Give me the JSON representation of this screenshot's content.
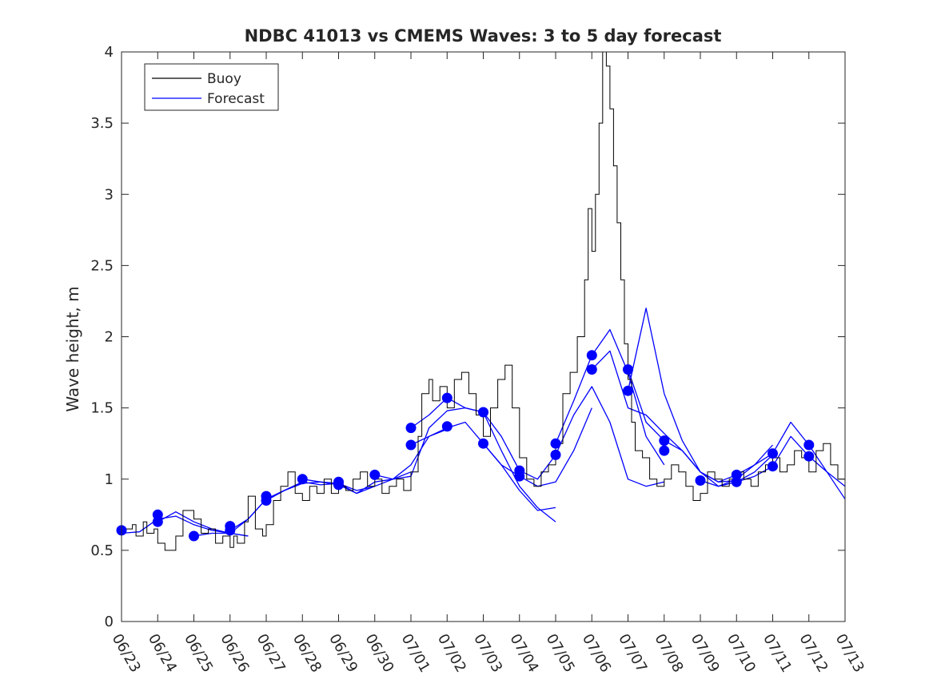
{
  "chart_data": {
    "type": "line",
    "title": "NDBC 41013 vs CMEMS Waves: 3 to 5 day forecast",
    "xlabel": "",
    "ylabel": "Wave height, m",
    "xlim": [
      "06/23",
      "07/13"
    ],
    "ylim": [
      0,
      4
    ],
    "grid": false,
    "legend_position": "top-left",
    "x_ticks": [
      "06/23",
      "06/24",
      "06/25",
      "06/26",
      "06/27",
      "06/28",
      "06/29",
      "06/30",
      "07/01",
      "07/02",
      "07/03",
      "07/04",
      "07/05",
      "07/06",
      "07/07",
      "07/08",
      "07/09",
      "07/10",
      "07/11",
      "07/12",
      "07/13"
    ],
    "y_ticks": [
      0,
      0.5,
      1,
      1.5,
      2,
      2.5,
      3,
      3.5,
      4
    ],
    "y_tick_labels": [
      "0",
      "0.5",
      "1",
      "1.5",
      "2",
      "2.5",
      "3",
      "3.5",
      "4"
    ],
    "colors": {
      "buoy": "#000000",
      "forecast": "#0000ff"
    },
    "legend": [
      {
        "label": "Buoy",
        "color": "#000000"
      },
      {
        "label": "Forecast",
        "color": "#0000ff"
      }
    ],
    "x_unit": "day of plotted period (0 = 06/23)",
    "buoy": {
      "name": "Buoy",
      "x": [
        0,
        0.3,
        0.4,
        0.6,
        0.7,
        0.9,
        1.0,
        1.2,
        1.5,
        1.7,
        2.0,
        2.2,
        2.4,
        2.6,
        2.8,
        3.0,
        3.1,
        3.2,
        3.4,
        3.5,
        3.7,
        3.9,
        4.0,
        4.2,
        4.4,
        4.6,
        4.8,
        5.0,
        5.2,
        5.4,
        5.6,
        5.8,
        6.0,
        6.2,
        6.4,
        6.6,
        6.8,
        7.0,
        7.2,
        7.4,
        7.6,
        7.8,
        8.0,
        8.2,
        8.3,
        8.5,
        8.6,
        8.8,
        9.0,
        9.2,
        9.4,
        9.6,
        9.8,
        10.0,
        10.2,
        10.4,
        10.6,
        10.8,
        11.0,
        11.2,
        11.4,
        11.6,
        11.8,
        12.0,
        12.2,
        12.4,
        12.6,
        12.8,
        12.9,
        13.0,
        13.1,
        13.2,
        13.3,
        13.4,
        13.5,
        13.6,
        13.7,
        13.8,
        13.9,
        14.0,
        14.1,
        14.2,
        14.4,
        14.6,
        14.8,
        15.0,
        15.2,
        15.4,
        15.6,
        15.8,
        16.0,
        16.2,
        16.4,
        16.6,
        16.8,
        17.0,
        17.2,
        17.4,
        17.6,
        17.8,
        18.0,
        18.2,
        18.4,
        18.6,
        18.8,
        19.0,
        19.2,
        19.4,
        19.6,
        19.8,
        20.0
      ],
      "y": [
        0.65,
        0.68,
        0.6,
        0.7,
        0.62,
        0.65,
        0.55,
        0.5,
        0.6,
        0.78,
        0.72,
        0.62,
        0.65,
        0.55,
        0.6,
        0.52,
        0.6,
        0.55,
        0.7,
        0.88,
        0.65,
        0.6,
        0.68,
        0.85,
        0.95,
        1.05,
        0.9,
        0.85,
        0.95,
        0.9,
        1.0,
        0.9,
        0.95,
        0.92,
        1.0,
        1.05,
        0.95,
        1.0,
        0.9,
        0.95,
        1.0,
        0.92,
        1.05,
        1.3,
        1.6,
        1.7,
        1.55,
        1.65,
        1.5,
        1.7,
        1.75,
        1.6,
        1.45,
        1.3,
        1.5,
        1.7,
        1.8,
        1.5,
        1.15,
        1.0,
        0.95,
        1.05,
        1.1,
        1.25,
        1.6,
        1.75,
        2.0,
        2.4,
        2.9,
        2.6,
        3.0,
        3.5,
        4.0,
        3.9,
        3.6,
        3.2,
        2.8,
        2.4,
        1.95,
        1.7,
        1.4,
        1.2,
        1.15,
        1.0,
        0.95,
        1.0,
        1.1,
        1.05,
        0.95,
        0.85,
        0.9,
        1.05,
        1.0,
        0.95,
        1.0,
        1.05,
        1.0,
        0.95,
        1.05,
        1.1,
        1.15,
        1.05,
        1.1,
        1.2,
        1.15,
        1.05,
        1.2,
        1.25,
        1.1,
        1.0,
        0.95
      ]
    },
    "forecast_runs": [
      {
        "x": [
          0,
          0.5,
          1,
          1.5,
          2,
          2.5,
          3,
          3.5
        ],
        "y": [
          0.62,
          0.63,
          0.72,
          0.74,
          0.68,
          0.64,
          0.62,
          0.6
        ]
      },
      {
        "x": [
          1,
          1.5,
          2,
          2.5,
          3,
          3.5
        ],
        "y": [
          0.7,
          0.77,
          0.7,
          0.65,
          0.62,
          0.6
        ]
      },
      {
        "x": [
          2,
          2.5,
          3,
          3.5,
          4,
          4.5,
          5
        ],
        "y": [
          0.6,
          0.62,
          0.62,
          0.72,
          0.86,
          0.92,
          0.98
        ]
      },
      {
        "x": [
          3,
          3.5,
          4,
          4.5,
          5,
          5.5,
          6,
          6.5,
          7
        ],
        "y": [
          0.64,
          0.72,
          0.86,
          0.92,
          0.97,
          0.98,
          0.96,
          0.9,
          0.95
        ]
      },
      {
        "x": [
          4,
          4.5,
          5,
          5.5,
          6,
          6.5,
          7,
          7.5,
          8
        ],
        "y": [
          0.85,
          0.92,
          0.98,
          0.96,
          0.97,
          0.92,
          0.95,
          1.0,
          1.05
        ]
      },
      {
        "x": [
          5,
          5.5,
          6,
          6.5,
          7,
          7.5,
          8,
          8.5,
          9
        ],
        "y": [
          1.0,
          0.98,
          0.97,
          0.9,
          0.98,
          1.0,
          1.1,
          1.3,
          1.35
        ]
      },
      {
        "x": [
          7,
          7.5,
          8,
          8.5,
          9,
          9.5,
          10,
          10.5,
          11
        ],
        "y": [
          1.03,
          1.0,
          1.02,
          1.36,
          1.48,
          1.5,
          1.47,
          1.3,
          1.06
        ]
      },
      {
        "x": [
          8,
          8.5,
          9,
          9.5,
          10,
          10.5,
          11,
          11.5,
          12
        ],
        "y": [
          1.24,
          1.3,
          1.36,
          1.4,
          1.25,
          1.1,
          0.92,
          0.78,
          0.8
        ]
      },
      {
        "x": [
          8,
          8.5,
          9,
          9.5,
          10,
          10.5,
          11,
          11.5,
          12
        ],
        "y": [
          1.36,
          1.45,
          1.57,
          1.5,
          1.47,
          1.2,
          0.95,
          0.8,
          0.7
        ]
      },
      {
        "x": [
          10,
          10.5,
          11,
          11.5,
          12,
          12.5,
          13
        ],
        "y": [
          1.25,
          1.1,
          1.02,
          0.95,
          0.98,
          1.2,
          1.5
        ]
      },
      {
        "x": [
          11,
          11.5,
          12,
          12.5,
          13,
          13.5,
          14,
          14.5,
          15
        ],
        "y": [
          1.06,
          1.0,
          1.17,
          1.45,
          1.65,
          1.4,
          1.0,
          0.95,
          0.98
        ]
      },
      {
        "x": [
          12,
          12.5,
          13,
          13.5,
          14,
          14.5,
          15
        ],
        "y": [
          1.25,
          1.55,
          1.87,
          2.05,
          1.75,
          1.3,
          1.1
        ]
      },
      {
        "x": [
          13,
          13.5,
          14,
          14.5,
          15,
          15.5,
          16,
          16.5,
          17
        ],
        "y": [
          1.77,
          1.9,
          1.5,
          1.45,
          1.32,
          1.2,
          1.05,
          0.98,
          0.99
        ]
      },
      {
        "x": [
          14,
          14.5,
          15,
          15.5,
          16,
          16.5,
          17,
          17.5,
          18
        ],
        "y": [
          1.77,
          1.4,
          1.27,
          1.2,
          1.05,
          0.95,
          0.98,
          1.05,
          1.17
        ]
      },
      {
        "x": [
          14,
          14.5,
          15,
          15.5,
          16,
          16.5,
          17,
          17.5,
          18
        ],
        "y": [
          1.62,
          2.2,
          1.6,
          1.27,
          1.05,
          0.98,
          1.03,
          1.1,
          1.24
        ]
      },
      {
        "x": [
          16,
          16.5,
          17,
          17.5,
          18,
          18.5,
          19,
          19.5,
          20
        ],
        "y": [
          0.99,
          0.95,
          1.0,
          1.1,
          1.18,
          1.4,
          1.24,
          1.05,
          0.95
        ]
      },
      {
        "x": [
          17,
          17.5,
          18,
          18.5,
          19,
          19.5,
          20
        ],
        "y": [
          0.98,
          1.02,
          1.09,
          1.3,
          1.16,
          1.05,
          0.86
        ]
      }
    ],
    "forecast_markers": [
      {
        "x": 0,
        "y": 0.64
      },
      {
        "x": 1,
        "y": 0.75
      },
      {
        "x": 1,
        "y": 0.7
      },
      {
        "x": 2,
        "y": 0.6
      },
      {
        "x": 3,
        "y": 0.64
      },
      {
        "x": 3,
        "y": 0.67
      },
      {
        "x": 4,
        "y": 0.88
      },
      {
        "x": 4,
        "y": 0.85
      },
      {
        "x": 5,
        "y": 1.0
      },
      {
        "x": 6,
        "y": 0.98
      },
      {
        "x": 6,
        "y": 0.96
      },
      {
        "x": 7,
        "y": 1.03
      },
      {
        "x": 8,
        "y": 1.36
      },
      {
        "x": 8,
        "y": 1.24
      },
      {
        "x": 9,
        "y": 1.57
      },
      {
        "x": 9,
        "y": 1.37
      },
      {
        "x": 10,
        "y": 1.47
      },
      {
        "x": 10,
        "y": 1.25
      },
      {
        "x": 11,
        "y": 1.06
      },
      {
        "x": 11,
        "y": 1.02
      },
      {
        "x": 12,
        "y": 1.25
      },
      {
        "x": 12,
        "y": 1.17
      },
      {
        "x": 13,
        "y": 1.87
      },
      {
        "x": 13,
        "y": 1.77
      },
      {
        "x": 14,
        "y": 1.77
      },
      {
        "x": 14,
        "y": 1.62
      },
      {
        "x": 15,
        "y": 1.27
      },
      {
        "x": 15,
        "y": 1.2
      },
      {
        "x": 16,
        "y": 0.99
      },
      {
        "x": 17,
        "y": 1.03
      },
      {
        "x": 17,
        "y": 0.98
      },
      {
        "x": 18,
        "y": 1.18
      },
      {
        "x": 18,
        "y": 1.09
      },
      {
        "x": 19,
        "y": 1.24
      },
      {
        "x": 19,
        "y": 1.16
      }
    ]
  }
}
